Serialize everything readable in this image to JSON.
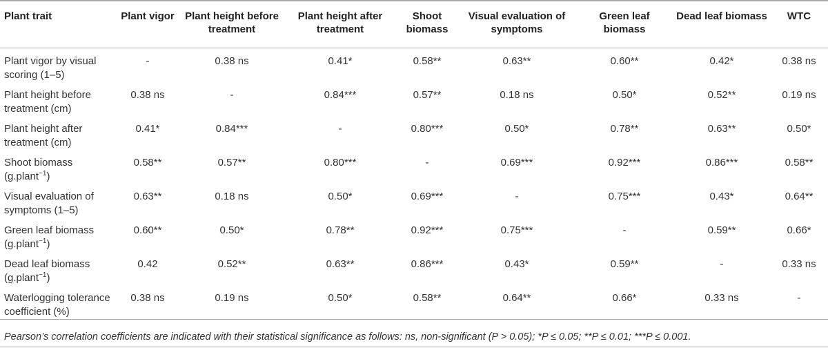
{
  "table": {
    "headers": [
      "Plant trait",
      "Plant vigor",
      "Plant height before treatment",
      "Plant height after treatment",
      "Shoot biomass",
      "Visual evaluation of symptoms",
      "Green leaf biomass",
      "Dead leaf biomass",
      "WTC"
    ],
    "rows": [
      {
        "trait": "Plant vigor by visual scoring (1–5)",
        "trait_sup": "",
        "trait_post": "",
        "values": [
          "-",
          "0.38 ns",
          "0.41*",
          "0.58**",
          "0.63**",
          "0.60**",
          "0.42*",
          "0.38 ns"
        ]
      },
      {
        "trait": "Plant height before treatment (cm)",
        "trait_sup": "",
        "trait_post": "",
        "values": [
          "0.38 ns",
          "-",
          "0.84***",
          "0.57**",
          "0.18 ns",
          "0.50*",
          "0.52**",
          "0.19 ns"
        ]
      },
      {
        "trait": "Plant height after treatment (cm)",
        "trait_sup": "",
        "trait_post": "",
        "values": [
          "0.41*",
          "0.84***",
          "-",
          "0.80***",
          "0.50*",
          "0.78**",
          "0.63**",
          "0.50*"
        ]
      },
      {
        "trait": "Shoot biomass (g.plant",
        "trait_sup": "−1",
        "trait_post": ")",
        "values": [
          "0.58**",
          "0.57**",
          "0.80***",
          "-",
          "0.69***",
          "0.92***",
          "0.86***",
          "0.58**"
        ]
      },
      {
        "trait": "Visual evaluation of symptoms (1–5)",
        "trait_sup": "",
        "trait_post": "",
        "values": [
          "0.63**",
          "0.18 ns",
          "0.50*",
          "0.69***",
          "-",
          "0.75***",
          "0.43*",
          "0.64**"
        ]
      },
      {
        "trait": "Green leaf biomass (g.plant",
        "trait_sup": "−1",
        "trait_post": ")",
        "values": [
          "0.60**",
          "0.50*",
          "0.78**",
          "0.92***",
          "0.75***",
          "-",
          "0.59**",
          "0.66*"
        ]
      },
      {
        "trait": "Dead leaf biomass (g.plant",
        "trait_sup": "−1",
        "trait_post": ")",
        "values": [
          "0.42",
          "0.52**",
          "0.63**",
          "0.86***",
          "0.43*",
          "0.59**",
          "-",
          "0.33 ns"
        ]
      },
      {
        "trait": "Waterlogging tolerance coefficient (%)",
        "trait_sup": "",
        "trait_post": "",
        "values": [
          "0.38 ns",
          "0.19 ns",
          "0.50*",
          "0.58**",
          "0.64**",
          "0.66*",
          "0.33 ns",
          "-"
        ]
      }
    ]
  },
  "footnote": "Pearson’s correlation coefficients are indicated with their statistical significance as follows: ns, non-significant (P > 0.05); *P ≤ 0.05; **P ≤ 0.01; ***P ≤ 0.001."
}
